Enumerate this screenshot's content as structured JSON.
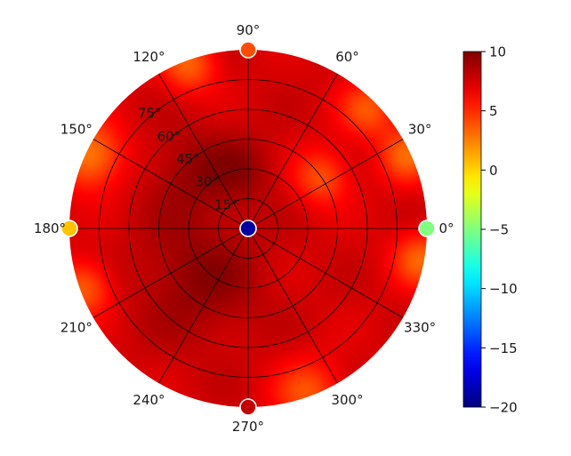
{
  "chart_data": {
    "type": "heatmap",
    "projection": "polar",
    "grid": true,
    "angle_ticks": [
      {
        "deg": 0,
        "label": "0°"
      },
      {
        "deg": 30,
        "label": "30°"
      },
      {
        "deg": 60,
        "label": "60°"
      },
      {
        "deg": 90,
        "label": "90°"
      },
      {
        "deg": 120,
        "label": "120°"
      },
      {
        "deg": 150,
        "label": "150°"
      },
      {
        "deg": 180,
        "label": "180°"
      },
      {
        "deg": 210,
        "label": "210°"
      },
      {
        "deg": 240,
        "label": "240°"
      },
      {
        "deg": 270,
        "label": "270°"
      },
      {
        "deg": 300,
        "label": "300°"
      },
      {
        "deg": 330,
        "label": "330°"
      }
    ],
    "radial_ticks": [
      {
        "value": 15,
        "label": "15°"
      },
      {
        "value": 30,
        "label": "30°"
      },
      {
        "value": 45,
        "label": "45°"
      },
      {
        "value": 60,
        "label": "60°"
      },
      {
        "value": 75,
        "label": "75°"
      }
    ],
    "r_range": [
      0,
      90
    ],
    "colorbar": {
      "colormap": "jet",
      "range": [
        -20,
        10
      ],
      "ticks": [
        10,
        5,
        0,
        -5,
        -10,
        -15,
        -20
      ],
      "tick_labels": [
        "10",
        "5",
        "0",
        "−5",
        "−10",
        "−15",
        "−20"
      ]
    },
    "field": {
      "base_value": 7.5,
      "description_free": true,
      "regions": [
        {
          "theta": 225,
          "r": 35,
          "spread": 22,
          "value": 9.6
        },
        {
          "theta": 135,
          "r": 40,
          "spread": 16,
          "value": 9.2
        },
        {
          "theta": 95,
          "r": 30,
          "spread": 12,
          "value": 9.0
        },
        {
          "theta": 35,
          "r": 45,
          "spread": 10,
          "value": 4.0
        },
        {
          "theta": 45,
          "r": 85,
          "spread": 10,
          "value": 4.0
        },
        {
          "theta": 25,
          "r": 88,
          "spread": 10,
          "value": 3.5
        },
        {
          "theta": 350,
          "r": 88,
          "spread": 10,
          "value": 3.5
        },
        {
          "theta": 155,
          "r": 88,
          "spread": 12,
          "value": 2.5
        },
        {
          "theta": 200,
          "r": 88,
          "spread": 10,
          "value": 3.5
        },
        {
          "theta": 110,
          "r": 88,
          "spread": 10,
          "value": 3.5
        },
        {
          "theta": 290,
          "r": 88,
          "spread": 12,
          "value": 4.0
        }
      ]
    },
    "markers": [
      {
        "theta": 0,
        "r": 0,
        "value": -19
      },
      {
        "theta": 0,
        "r": 90,
        "value": -5
      },
      {
        "theta": 90,
        "r": 90,
        "value": 4
      },
      {
        "theta": 180,
        "r": 90,
        "value": 0.5
      },
      {
        "theta": 270,
        "r": 90,
        "value": 8
      }
    ]
  }
}
